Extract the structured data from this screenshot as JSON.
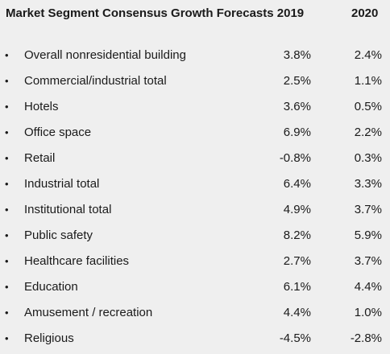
{
  "header": {
    "title": "Market Segment Consensus Growth Forecasts 2019",
    "col_2020": "2020"
  },
  "rows": [
    {
      "bullet": "•",
      "label": "Overall nonresidential building",
      "v2019": "3.8%",
      "v2020": "2.4%"
    },
    {
      "bullet": "•",
      "label": "Commercial/industrial total",
      "v2019": "2.5%",
      "v2020": "1.1%"
    },
    {
      "bullet": "•",
      "label": "Hotels",
      "v2019": "3.6%",
      "v2020": "0.5%"
    },
    {
      "bullet": "•",
      "label": "Office space",
      "v2019": "6.9%",
      "v2020": "2.2%"
    },
    {
      "bullet": "•",
      "label": "Retail",
      "v2019": "-0.8%",
      "v2020": "0.3%"
    },
    {
      "bullet": "•",
      "label": "Industrial total",
      "v2019": "6.4%",
      "v2020": "3.3%"
    },
    {
      "bullet": "•",
      "label": "Institutional total",
      "v2019": "4.9%",
      "v2020": "3.7%"
    },
    {
      "bullet": "•",
      "label": "Public safety",
      "v2019": "8.2%",
      "v2020": "5.9%"
    },
    {
      "bullet": "•",
      "label": "Healthcare facilities",
      "v2019": "2.7%",
      "v2020": "3.7%"
    },
    {
      "bullet": "•",
      "label": "Education",
      "v2019": "6.1%",
      "v2020": "4.4%"
    },
    {
      "bullet": "•",
      "label": "Amusement / recreation",
      "v2019": "4.4%",
      "v2020": "1.0%"
    },
    {
      "bullet": "•",
      "label": "Religious",
      "v2019": "-4.5%",
      "v2020": "-2.8%"
    }
  ]
}
